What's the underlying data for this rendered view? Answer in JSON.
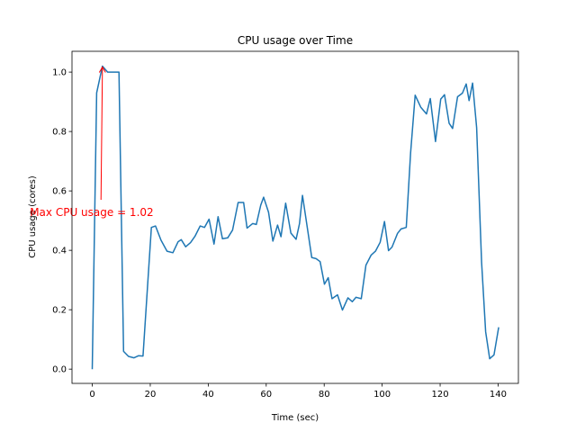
{
  "chart_data": {
    "type": "line",
    "title": "CPU usage over Time",
    "xlabel": "Time (sec)",
    "ylabel": "CPU usage (cores)",
    "xlim": [
      -7,
      147
    ],
    "ylim": [
      -0.048,
      1.07
    ],
    "xticks": [
      0,
      20,
      40,
      60,
      80,
      100,
      120,
      140
    ],
    "yticks": [
      0.0,
      0.2,
      0.4,
      0.6,
      0.8,
      1.0
    ],
    "xtick_labels": [
      "0",
      "20",
      "40",
      "60",
      "80",
      "100",
      "120",
      "140"
    ],
    "ytick_labels": [
      "0.0",
      "0.2",
      "0.4",
      "0.6",
      "0.8",
      "1.0"
    ],
    "grid": false,
    "series": [
      {
        "color": "#1f77b4",
        "x": [
          0,
          1.5,
          3.5,
          5.3,
          7.1,
          9.2,
          10.8,
          12.5,
          14.4,
          15.9,
          17.5,
          20.4,
          21.8,
          23.7,
          25.8,
          27.8,
          29.6,
          30.7,
          32.2,
          33.9,
          35.4,
          37.2,
          38.7,
          40.3,
          42.0,
          43.4,
          44.9,
          46.7,
          48.4,
          50.3,
          52.2,
          53.4,
          55.3,
          56.6,
          58.1,
          59.1,
          60.8,
          62.3,
          63.9,
          65.1,
          66.7,
          68.5,
          70.3,
          71.5,
          72.5,
          75.7,
          77.2,
          78.6,
          80.1,
          81.4,
          82.7,
          84.6,
          86.3,
          88.2,
          89.7,
          91.0,
          92.8,
          94.4,
          96.2,
          97.7,
          99.3,
          100.8,
          102.2,
          103.4,
          105.3,
          106.5,
          108.3,
          109.8,
          111.4,
          113.3,
          115.3,
          116.6,
          118.4,
          120.2,
          121.5,
          123.1,
          124.3,
          126.0,
          127.7,
          129.0,
          130.0,
          131.2,
          132.6,
          134.3,
          135.7,
          137.1,
          138.6,
          140.2
        ],
        "y": [
          0.0,
          0.93,
          1.02,
          1.0,
          1.0,
          1.0,
          0.06,
          0.043,
          0.038,
          0.045,
          0.044,
          0.477,
          0.482,
          0.434,
          0.397,
          0.392,
          0.429,
          0.436,
          0.412,
          0.426,
          0.447,
          0.482,
          0.477,
          0.505,
          0.421,
          0.513,
          0.439,
          0.442,
          0.468,
          0.561,
          0.561,
          0.475,
          0.49,
          0.487,
          0.552,
          0.579,
          0.528,
          0.431,
          0.485,
          0.446,
          0.559,
          0.458,
          0.437,
          0.49,
          0.585,
          0.376,
          0.372,
          0.362,
          0.286,
          0.308,
          0.237,
          0.25,
          0.199,
          0.24,
          0.227,
          0.242,
          0.237,
          0.35,
          0.384,
          0.397,
          0.427,
          0.497,
          0.399,
          0.411,
          0.457,
          0.472,
          0.477,
          0.727,
          0.922,
          0.882,
          0.859,
          0.911,
          0.766,
          0.909,
          0.924,
          0.828,
          0.81,
          0.917,
          0.929,
          0.96,
          0.904,
          0.963,
          0.813,
          0.36,
          0.126,
          0.035,
          0.048,
          0.141
        ]
      }
    ],
    "annotations": [
      {
        "text": "Max CPU usage = 1.02",
        "color": "#ff0000",
        "xy": [
          3.5,
          1.02
        ],
        "xytext": [
          3.0,
          0.57
        ],
        "arrow": true
      }
    ]
  }
}
